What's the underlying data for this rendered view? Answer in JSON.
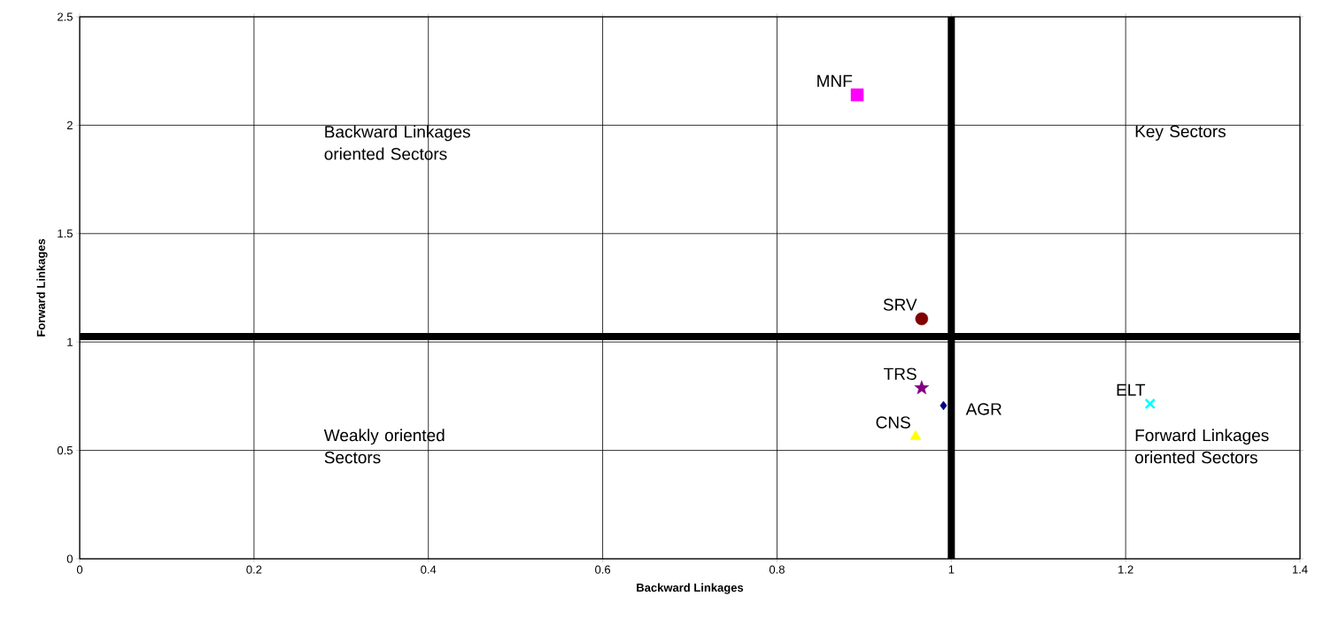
{
  "chart_data": {
    "type": "scatter",
    "xlabel": "Backward Linkages",
    "ylabel": "Forward Linkages",
    "xlim": [
      0,
      1.4
    ],
    "xticks": [
      0,
      0.2,
      0.4,
      0.6,
      0.8,
      1,
      1.2,
      1.4
    ],
    "ylim": [
      0,
      2.5
    ],
    "yticks": [
      0,
      0.5,
      1,
      1.5,
      2,
      2.5
    ],
    "grid": true,
    "series": [
      {
        "name": "AGR",
        "color": "#000080",
        "marker": "diamond",
        "x": [
          0.991
        ],
        "values": [
          0.707
        ]
      },
      {
        "name": "MNF",
        "color": "#ff00ff",
        "marker": "square",
        "x": [
          0.892
        ],
        "values": [
          2.14
        ]
      },
      {
        "name": "CNS",
        "color": "#ffff00",
        "marker": "triangle",
        "x": [
          0.959
        ],
        "values": [
          0.564
        ]
      },
      {
        "name": "TRS",
        "color": "#800080",
        "marker": "star",
        "x": [
          0.966
        ],
        "values": [
          0.788
        ]
      },
      {
        "name": "ELT",
        "color": "#00ffff",
        "marker": "cross",
        "x": [
          1.228
        ],
        "values": [
          0.715
        ]
      },
      {
        "name": "SRV",
        "color": "#800000",
        "marker": "circle",
        "x": [
          0.966
        ],
        "values": [
          1.107
        ]
      }
    ],
    "ref_lines": [
      {
        "axis": "y",
        "value": 1.025,
        "color": "#000000"
      },
      {
        "axis": "x",
        "value": 1.0,
        "color": "#000000"
      }
    ],
    "annotations": [
      "Backward Linkages oriented Sectors",
      "Key Sectors",
      "Weakly oriented Sectors",
      "Forward Linkages oriented Sectors"
    ]
  }
}
